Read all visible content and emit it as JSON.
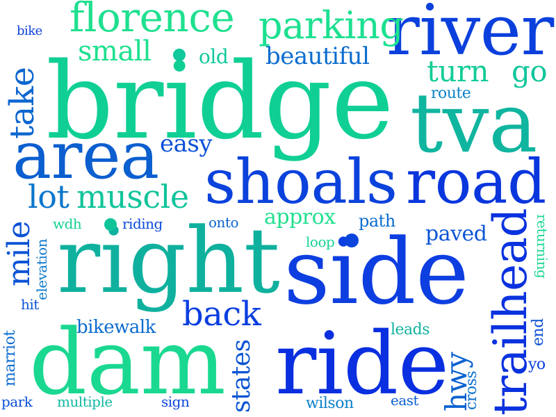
{
  "colors": {
    "background": "#ffffff",
    "palette": [
      "#1fe08f",
      "#10c79a",
      "#0aa8a8",
      "#0b6fd0",
      "#0b3fe0",
      "#1130d8"
    ]
  },
  "words": {
    "bridge": "bridge",
    "river": "river",
    "tva": "tva",
    "area": "area",
    "shoals": "shoals",
    "road": "road",
    "right": "right",
    "side": "side",
    "dam": "dam",
    "ride": "ride",
    "trailhead": "trailhead",
    "florence": "florence",
    "parking": "parking",
    "small": "small",
    "beautiful": "beautiful",
    "old": "old",
    "turn": "turn",
    "go": "go",
    "route": "route",
    "take": "take",
    "easy": "easy",
    "lot": "lot",
    "muscle": "muscle",
    "mile": "mile",
    "wdh": "wdh",
    "riding": "riding",
    "onto": "onto",
    "approx": "approx",
    "path": "path",
    "paved": "paved",
    "loop": "loop",
    "returning": "returning",
    "elevation": "elevation",
    "hit": "hit",
    "back": "back",
    "bikewalk": "bikewalk",
    "leads": "leads",
    "end": "end",
    "marriot": "marriot",
    "states": "states",
    "hwy": "hwy",
    "cross": "cross",
    "yo": "yo",
    "park": "park",
    "multiple": "multiple",
    "sign": "sign",
    "wilson": "wilson",
    "east": "east",
    "bike": "bike"
  }
}
